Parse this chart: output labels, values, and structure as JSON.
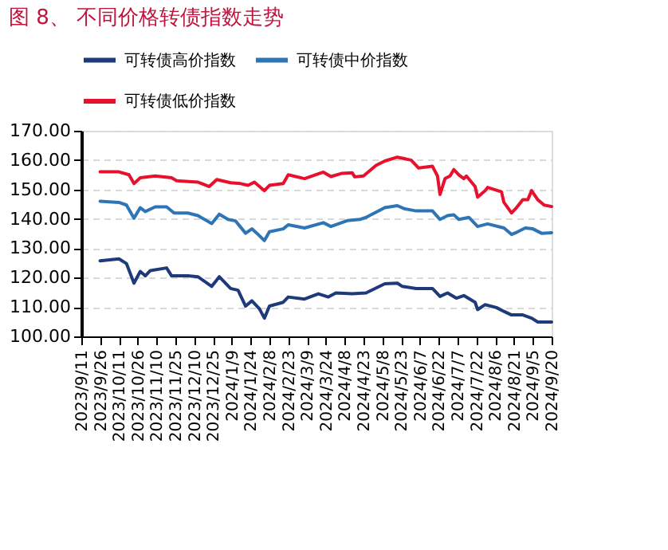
{
  "chart_data": {
    "type": "line",
    "title": "图 8、 不同价格转债指数走势",
    "xlim": [
      "2023-09-11",
      "2024-09-20"
    ],
    "xticks": [
      {
        "value": "2023-09-11",
        "label": "2023/9/11"
      },
      {
        "value": "2023-09-26",
        "label": "2023/9/26"
      },
      {
        "value": "2023-10-11",
        "label": "2023/10/11"
      },
      {
        "value": "2023-10-26",
        "label": "2023/10/26"
      },
      {
        "value": "2023-11-10",
        "label": "2023/11/10"
      },
      {
        "value": "2023-11-25",
        "label": "2023/11/25"
      },
      {
        "value": "2023-12-10",
        "label": "2023/12/10"
      },
      {
        "value": "2023-12-25",
        "label": "2023/12/25"
      },
      {
        "value": "2024-01-09",
        "label": "2024/1/9"
      },
      {
        "value": "2024-01-24",
        "label": "2024/1/24"
      },
      {
        "value": "2024-02-08",
        "label": "2024/2/8"
      },
      {
        "value": "2024-02-23",
        "label": "2024/2/23"
      },
      {
        "value": "2024-03-09",
        "label": "2024/3/9"
      },
      {
        "value": "2024-03-24",
        "label": "2024/3/24"
      },
      {
        "value": "2024-04-08",
        "label": "2024/4/8"
      },
      {
        "value": "2024-04-23",
        "label": "2024/4/23"
      },
      {
        "value": "2024-05-08",
        "label": "2024/5/8"
      },
      {
        "value": "2024-05-23",
        "label": "2024/5/23"
      },
      {
        "value": "2024-06-07",
        "label": "2024/6/7"
      },
      {
        "value": "2024-06-22",
        "label": "2024/6/22"
      },
      {
        "value": "2024-07-07",
        "label": "2024/7/7"
      },
      {
        "value": "2024-07-22",
        "label": "2024/7/22"
      },
      {
        "value": "2024-08-06",
        "label": "2024/8/6"
      },
      {
        "value": "2024-08-21",
        "label": "2024/8/21"
      },
      {
        "value": "2024-09-05",
        "label": "2024/9/5"
      },
      {
        "value": "2024-09-20",
        "label": "2024/9/20"
      }
    ],
    "ylim": [
      100,
      170
    ],
    "yticks": [
      {
        "value": 100,
        "label": "100.00"
      },
      {
        "value": 110,
        "label": "110.00"
      },
      {
        "value": 120,
        "label": "120.00"
      },
      {
        "value": 130,
        "label": "130.00"
      },
      {
        "value": 140,
        "label": "140.00"
      },
      {
        "value": 150,
        "label": "150.00"
      },
      {
        "value": 160,
        "label": "160.00"
      },
      {
        "value": 170,
        "label": "170.00"
      }
    ],
    "grid": "y",
    "legend": "top",
    "marker": "none",
    "line_style": "solid",
    "series": [
      {
        "name": "可转债高价指数",
        "color": "#1f3a7a",
        "x": [
          "2023-09-26",
          "2023-10-11",
          "2023-10-17",
          "2023-10-23",
          "2023-10-28",
          "2023-11-01",
          "2023-11-05",
          "2023-11-18",
          "2023-11-22",
          "2023-12-05",
          "2023-12-13",
          "2023-12-24",
          "2023-12-30",
          "2024-01-08",
          "2024-01-14",
          "2024-01-20",
          "2024-01-25",
          "2024-01-31",
          "2024-02-04",
          "2024-02-08",
          "2024-02-19",
          "2024-02-23",
          "2024-03-07",
          "2024-03-18",
          "2024-03-26",
          "2024-04-01",
          "2024-04-14",
          "2024-04-25",
          "2024-05-10",
          "2024-05-20",
          "2024-05-24",
          "2024-06-04",
          "2024-06-17",
          "2024-06-23",
          "2024-06-29",
          "2024-07-06",
          "2024-07-12",
          "2024-07-21",
          "2024-07-23",
          "2024-07-29",
          "2024-08-07",
          "2024-08-13",
          "2024-08-19",
          "2024-08-28",
          "2024-09-04",
          "2024-09-09",
          "2024-09-20"
        ],
        "values": [
          125.7,
          126.4,
          124.8,
          118.1,
          122.1,
          120.6,
          122.4,
          123.3,
          120.6,
          120.6,
          120.3,
          117,
          120.3,
          116.3,
          115.7,
          110.3,
          112.1,
          109.4,
          106.2,
          110.3,
          111.6,
          113.4,
          112.7,
          114.5,
          113.4,
          114.8,
          114.5,
          114.8,
          117.9,
          118.1,
          117,
          116.3,
          116.3,
          113.6,
          114.8,
          113,
          113.9,
          111.6,
          109.1,
          110.8,
          109.8,
          108.5,
          107.3,
          107.3,
          106.2,
          104.9,
          104.9
        ]
      },
      {
        "name": "可转债中价指数",
        "color": "#2e75b6",
        "x": [
          "2023-09-26",
          "2023-10-11",
          "2023-10-17",
          "2023-10-23",
          "2023-10-28",
          "2023-11-01",
          "2023-11-09",
          "2023-11-18",
          "2023-11-24",
          "2023-12-05",
          "2023-12-13",
          "2023-12-24",
          "2023-12-30",
          "2024-01-06",
          "2024-01-12",
          "2024-01-20",
          "2024-01-25",
          "2024-01-29",
          "2024-02-04",
          "2024-02-08",
          "2024-02-19",
          "2024-02-23",
          "2024-03-07",
          "2024-03-22",
          "2024-03-28",
          "2024-04-10",
          "2024-04-20",
          "2024-04-25",
          "2024-05-10",
          "2024-05-20",
          "2024-05-26",
          "2024-06-04",
          "2024-06-17",
          "2024-06-23",
          "2024-06-29",
          "2024-07-04",
          "2024-07-08",
          "2024-07-16",
          "2024-07-23",
          "2024-07-31",
          "2024-08-13",
          "2024-08-19",
          "2024-08-23",
          "2024-08-30",
          "2024-09-05",
          "2024-09-12",
          "2024-09-20"
        ],
        "values": [
          146,
          145.6,
          144.7,
          140.2,
          143.8,
          142.5,
          144.1,
          144.1,
          142,
          142,
          141.1,
          138.4,
          141.6,
          139.8,
          139.3,
          135.1,
          136.6,
          135.1,
          132.6,
          135.6,
          136.6,
          138,
          136.9,
          138.7,
          137.4,
          139.4,
          139.8,
          140.5,
          143.8,
          144.5,
          143.4,
          142.7,
          142.7,
          139.8,
          141.1,
          141.4,
          139.8,
          140.5,
          137.4,
          138.3,
          136.9,
          134.7,
          135.4,
          136.9,
          136.6,
          135.1,
          135.3
        ]
      },
      {
        "name": "可转债低价指数",
        "color": "#e8112d",
        "x": [
          "2023-09-26",
          "2023-10-11",
          "2023-10-19",
          "2023-10-23",
          "2023-10-28",
          "2023-11-09",
          "2023-11-22",
          "2023-11-26",
          "2023-12-13",
          "2023-12-22",
          "2023-12-28",
          "2024-01-08",
          "2024-01-16",
          "2024-01-22",
          "2024-01-27",
          "2024-02-04",
          "2024-02-08",
          "2024-02-19",
          "2024-02-23",
          "2024-03-07",
          "2024-03-22",
          "2024-03-28",
          "2024-04-06",
          "2024-04-14",
          "2024-04-16",
          "2024-04-23",
          "2024-05-03",
          "2024-05-10",
          "2024-05-20",
          "2024-05-31",
          "2024-06-06",
          "2024-06-17",
          "2024-06-21",
          "2024-06-23",
          "2024-06-27",
          "2024-07-01",
          "2024-07-04",
          "2024-07-08",
          "2024-07-12",
          "2024-07-14",
          "2024-07-21",
          "2024-07-23",
          "2024-07-29",
          "2024-07-31",
          "2024-08-11",
          "2024-08-13",
          "2024-08-19",
          "2024-08-23",
          "2024-08-28",
          "2024-09-01",
          "2024-09-04",
          "2024-09-09",
          "2024-09-14",
          "2024-09-20"
        ],
        "values": [
          156,
          156,
          155,
          152,
          154,
          154.6,
          154,
          153,
          152.5,
          151,
          153.4,
          152.3,
          152,
          151.4,
          152.5,
          149.6,
          151.4,
          152,
          155,
          153.7,
          155.9,
          154.4,
          155.5,
          155.7,
          154.3,
          154.6,
          158.2,
          159.7,
          161,
          160,
          157.3,
          157.9,
          154.6,
          148.3,
          153.7,
          154.6,
          156.8,
          155,
          153.7,
          154.6,
          151,
          147.4,
          149.6,
          150.7,
          149.2,
          145.6,
          142,
          143.8,
          146.5,
          146.5,
          149.6,
          146.5,
          144.7,
          144.2
        ]
      }
    ]
  }
}
